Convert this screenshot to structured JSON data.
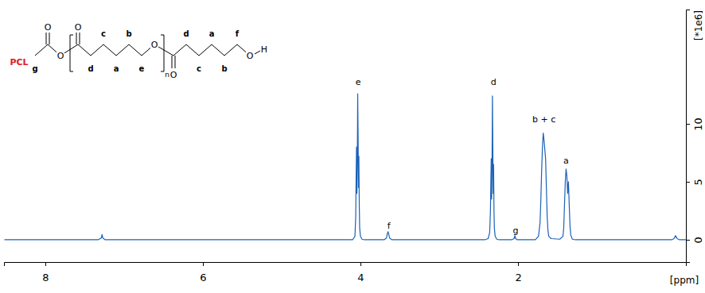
{
  "chart_data": {
    "type": "line",
    "color": "#1c62b9",
    "x_label": "[ppm]",
    "y_label": "[*1e6]",
    "xlim": [
      8.525,
      -0.131
    ],
    "xticks": [
      8,
      6,
      4,
      2
    ],
    "ylim": [
      -1.92,
      19.86
    ],
    "yticks": [
      0,
      5,
      10
    ],
    "x": [
      8.52,
      7.33,
      7.29,
      7.28,
      7.27,
      7.24,
      4.1,
      4.07,
      4.06,
      4.055,
      4.05,
      4.045,
      4.04,
      4.035,
      4.03,
      4.025,
      4.02,
      4.015,
      4.01,
      4.0,
      3.98,
      3.95,
      3.7,
      3.67,
      3.66,
      3.65,
      3.64,
      3.63,
      3.6,
      2.42,
      2.38,
      2.36,
      2.35,
      2.345,
      2.34,
      2.335,
      2.33,
      2.325,
      2.32,
      2.315,
      2.31,
      2.305,
      2.3,
      2.29,
      2.27,
      2.24,
      2.08,
      2.05,
      2.04,
      2.03,
      2.01,
      1.78,
      1.74,
      1.72,
      1.71,
      1.7,
      1.69,
      1.68,
      1.67,
      1.66,
      1.65,
      1.64,
      1.63,
      1.62,
      1.61,
      1.58,
      1.47,
      1.43,
      1.42,
      1.41,
      1.4,
      1.39,
      1.38,
      1.37,
      1.36,
      1.35,
      1.34,
      1.33,
      1.31,
      1.27,
      0.05,
      0.02,
      0.0,
      -0.02,
      -0.05,
      -0.13
    ],
    "values": [
      0,
      0,
      0.15,
      0.45,
      0.15,
      0,
      0,
      0.3,
      2.0,
      5.5,
      8.0,
      4.0,
      6.5,
      12.6,
      9.0,
      4.5,
      7.2,
      3.0,
      1.0,
      0.3,
      0.05,
      0,
      0,
      0.15,
      0.5,
      0.7,
      0.45,
      0.15,
      0,
      0,
      0.1,
      0.6,
      2.5,
      5.0,
      7.0,
      3.5,
      6.0,
      12.4,
      8.0,
      4.0,
      6.5,
      2.5,
      1.0,
      0.3,
      0.05,
      0,
      0,
      0.1,
      0.35,
      0.1,
      0,
      0,
      0.3,
      1.5,
      3.5,
      6.0,
      8.0,
      9.2,
      8.6,
      7.8,
      7.0,
      4.5,
      2.0,
      0.8,
      0.3,
      0.1,
      0.05,
      0.3,
      1.0,
      3.0,
      5.0,
      6.1,
      5.5,
      4.0,
      5.0,
      3.0,
      1.2,
      0.4,
      0.05,
      0,
      0,
      0.1,
      0.35,
      0.1,
      0,
      0
    ],
    "annotations": [
      {
        "text": "e",
        "x": 4.03,
        "y": 13.6
      },
      {
        "text": "f",
        "x": 3.64,
        "y": 1.2
      },
      {
        "text": "d",
        "x": 2.31,
        "y": 13.6
      },
      {
        "text": "g",
        "x": 2.03,
        "y": 0.8
      },
      {
        "text": "b + c",
        "x": 1.67,
        "y": 10.4
      },
      {
        "text": "a",
        "x": 1.39,
        "y": 6.85
      }
    ],
    "structure": {
      "name": "PCL",
      "carbons": [
        "g",
        "d",
        "c",
        "a",
        "b",
        "e",
        "d",
        "c",
        "a",
        "b",
        "f"
      ],
      "atoms": [
        "O",
        "O",
        "O",
        "O",
        "O",
        "O",
        "H"
      ],
      "repeat": "n"
    }
  }
}
